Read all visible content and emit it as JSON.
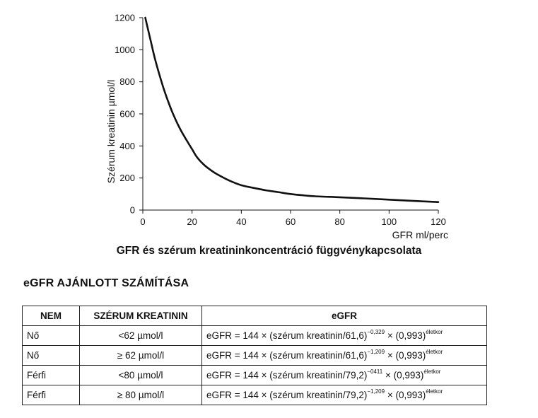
{
  "chart_data": {
    "type": "line",
    "title": "GFR és szérum kreatininkoncentráció függvénykapcsolata",
    "xlabel": "GFR ml/perc",
    "ylabel": "Szérum kreatinin µmol/l",
    "xlim": [
      0,
      120
    ],
    "ylim": [
      0,
      1200
    ],
    "xticks": [
      "0",
      "20",
      "40",
      "60",
      "80",
      "100",
      "120"
    ],
    "yticks": [
      "0",
      "200",
      "400",
      "600",
      "800",
      "1000",
      "1200"
    ],
    "grid": false,
    "series": [
      {
        "x": [
          1,
          3,
          5,
          8,
          10,
          12,
          15,
          18,
          20,
          22,
          25,
          28,
          30,
          35,
          40,
          45,
          50,
          55,
          60,
          65,
          70,
          80,
          90,
          100,
          110,
          120
        ],
        "y": [
          1200,
          1070,
          940,
          780,
          690,
          610,
          510,
          430,
          380,
          330,
          280,
          245,
          225,
          185,
          155,
          138,
          123,
          112,
          100,
          92,
          86,
          80,
          73,
          65,
          57,
          50
        ]
      }
    ]
  },
  "section_title": "eGFR AJÁNLOTT SZÁMÍTÁSA",
  "table": {
    "headers": [
      "NEM",
      "SZÉRUM KREATININ",
      "eGFR"
    ],
    "rows": [
      {
        "sex": "Nő",
        "creatinine": "<62 µmol/l",
        "formula": "eGFR = 144 × (szérum kreatinin/61,6)",
        "exp": "−0,329",
        "factor": "× (0,993)",
        "age_exp": "életkor"
      },
      {
        "sex": "Nő",
        "creatinine": "≥ 62 µmol/l",
        "formula": "eGFR = 144 × (szérum kreatinin/61,6)",
        "exp": "−1,209",
        "factor": "× (0,993)",
        "age_exp": "életkor"
      },
      {
        "sex": "Férfi",
        "creatinine": "<80 µmol/l",
        "formula": "eGFR = 144 × (szérum kreatinin/79,2)",
        "exp": "−0411",
        "factor": "× (0,993)",
        "age_exp": "életkor"
      },
      {
        "sex": "Férfi",
        "creatinine": "≥ 80 µmol/l",
        "formula": "eGFR = 144 × (szérum kreatinin/79,2)",
        "exp": "−1,209",
        "factor": "× (0,993)",
        "age_exp": "életkor"
      }
    ]
  }
}
